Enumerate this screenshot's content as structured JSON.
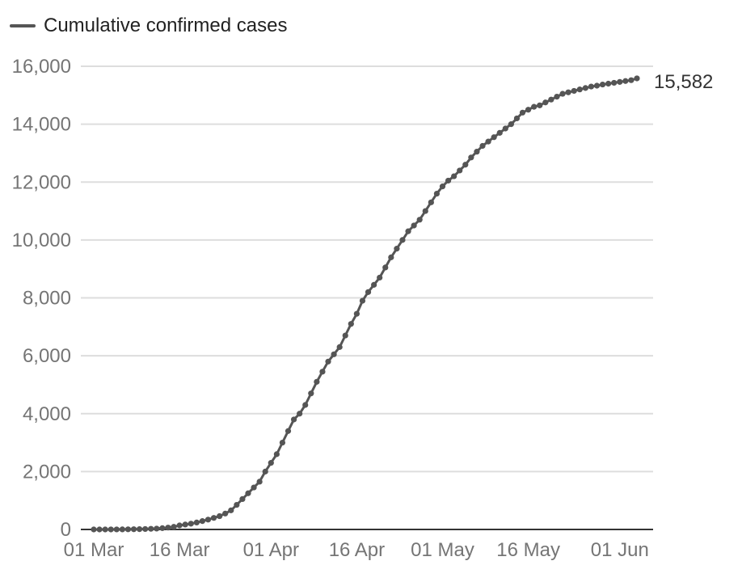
{
  "chart_data": {
    "type": "line",
    "title": "",
    "xlabel": "",
    "ylabel": "",
    "legend_position": "top-left",
    "grid": true,
    "ylim": [
      0,
      16000
    ],
    "y_ticks": [
      0,
      2000,
      4000,
      6000,
      8000,
      10000,
      12000,
      14000,
      16000
    ],
    "y_tick_labels": [
      "0",
      "2,000",
      "4,000",
      "6,000",
      "8,000",
      "10,000",
      "12,000",
      "14,000",
      "16,000"
    ],
    "x_tick_labels": [
      "01 Mar",
      "16 Mar",
      "01 Apr",
      "16 Apr",
      "01 May",
      "16 May",
      "01 Jun"
    ],
    "x_range": [
      "01 Mar",
      "04 Jun"
    ],
    "end_label": "15,582",
    "colors": {
      "line": "#555555",
      "grid": "#dddddd",
      "axis": "#333333",
      "tick_text": "#757575"
    },
    "series": [
      {
        "name": "Cumulative confirmed cases",
        "x": [
          "01 Mar",
          "02 Mar",
          "03 Mar",
          "04 Mar",
          "05 Mar",
          "06 Mar",
          "07 Mar",
          "08 Mar",
          "09 Mar",
          "10 Mar",
          "11 Mar",
          "12 Mar",
          "13 Mar",
          "14 Mar",
          "15 Mar",
          "16 Mar",
          "17 Mar",
          "18 Mar",
          "19 Mar",
          "20 Mar",
          "21 Mar",
          "22 Mar",
          "23 Mar",
          "24 Mar",
          "25 Mar",
          "26 Mar",
          "27 Mar",
          "28 Mar",
          "29 Mar",
          "30 Mar",
          "31 Mar",
          "01 Apr",
          "02 Apr",
          "03 Apr",
          "04 Apr",
          "05 Apr",
          "06 Apr",
          "07 Apr",
          "08 Apr",
          "09 Apr",
          "10 Apr",
          "11 Apr",
          "12 Apr",
          "13 Apr",
          "14 Apr",
          "15 Apr",
          "16 Apr",
          "17 Apr",
          "18 Apr",
          "19 Apr",
          "20 Apr",
          "21 Apr",
          "22 Apr",
          "23 Apr",
          "24 Apr",
          "25 Apr",
          "26 Apr",
          "27 Apr",
          "28 Apr",
          "29 Apr",
          "30 Apr",
          "01 May",
          "02 May",
          "03 May",
          "04 May",
          "05 May",
          "06 May",
          "07 May",
          "08 May",
          "09 May",
          "10 May",
          "11 May",
          "12 May",
          "13 May",
          "14 May",
          "15 May",
          "16 May",
          "17 May",
          "18 May",
          "19 May",
          "20 May",
          "21 May",
          "22 May",
          "23 May",
          "24 May",
          "25 May",
          "26 May",
          "27 May",
          "28 May",
          "29 May",
          "30 May",
          "31 May",
          "01 Jun",
          "02 Jun",
          "03 Jun",
          "04 Jun"
        ],
        "values": [
          0,
          0,
          0,
          1,
          2,
          3,
          5,
          8,
          11,
          16,
          22,
          30,
          45,
          65,
          90,
          140,
          170,
          200,
          240,
          290,
          340,
          400,
          460,
          550,
          660,
          850,
          1050,
          1250,
          1450,
          1650,
          2000,
          2300,
          2600,
          3000,
          3400,
          3800,
          4000,
          4300,
          4700,
          5100,
          5450,
          5800,
          6050,
          6300,
          6700,
          7100,
          7450,
          7900,
          8200,
          8450,
          8700,
          9050,
          9400,
          9700,
          10000,
          10300,
          10500,
          10700,
          11000,
          11300,
          11600,
          11850,
          12050,
          12200,
          12400,
          12600,
          12850,
          13050,
          13250,
          13400,
          13550,
          13700,
          13850,
          14000,
          14200,
          14400,
          14500,
          14600,
          14650,
          14750,
          14850,
          14950,
          15050,
          15100,
          15150,
          15200,
          15250,
          15300,
          15330,
          15370,
          15400,
          15430,
          15460,
          15490,
          15520,
          15582
        ]
      }
    ]
  }
}
